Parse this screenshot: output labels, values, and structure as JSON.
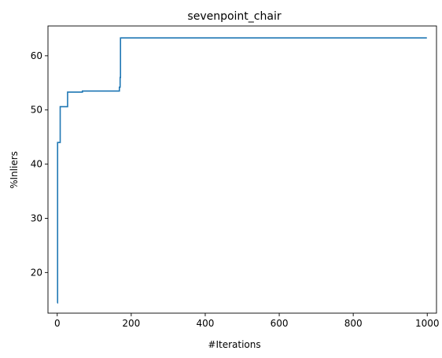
{
  "chart_data": {
    "type": "line",
    "title": "sevenpoint_chair",
    "xlabel": "#Iterations",
    "ylabel": "%Inliers",
    "xlim": [
      -25,
      1025
    ],
    "ylim": [
      12.5,
      65.5
    ],
    "xticks": [
      0,
      200,
      400,
      600,
      800,
      1000
    ],
    "yticks": [
      20,
      30,
      40,
      50,
      60
    ],
    "grid": false,
    "series": [
      {
        "color": "#1f77b4",
        "x": [
          0,
          1,
          1,
          8,
          8,
          12,
          12,
          28,
          28,
          68,
          68,
          168,
          168,
          170,
          170,
          171,
          171,
          999
        ],
        "y": [
          14.4,
          14.4,
          44.0,
          44.0,
          50.6,
          50.6,
          50.6,
          50.6,
          53.3,
          53.3,
          53.5,
          53.5,
          54.2,
          54.2,
          56.0,
          56.0,
          63.3,
          63.3
        ]
      }
    ]
  }
}
